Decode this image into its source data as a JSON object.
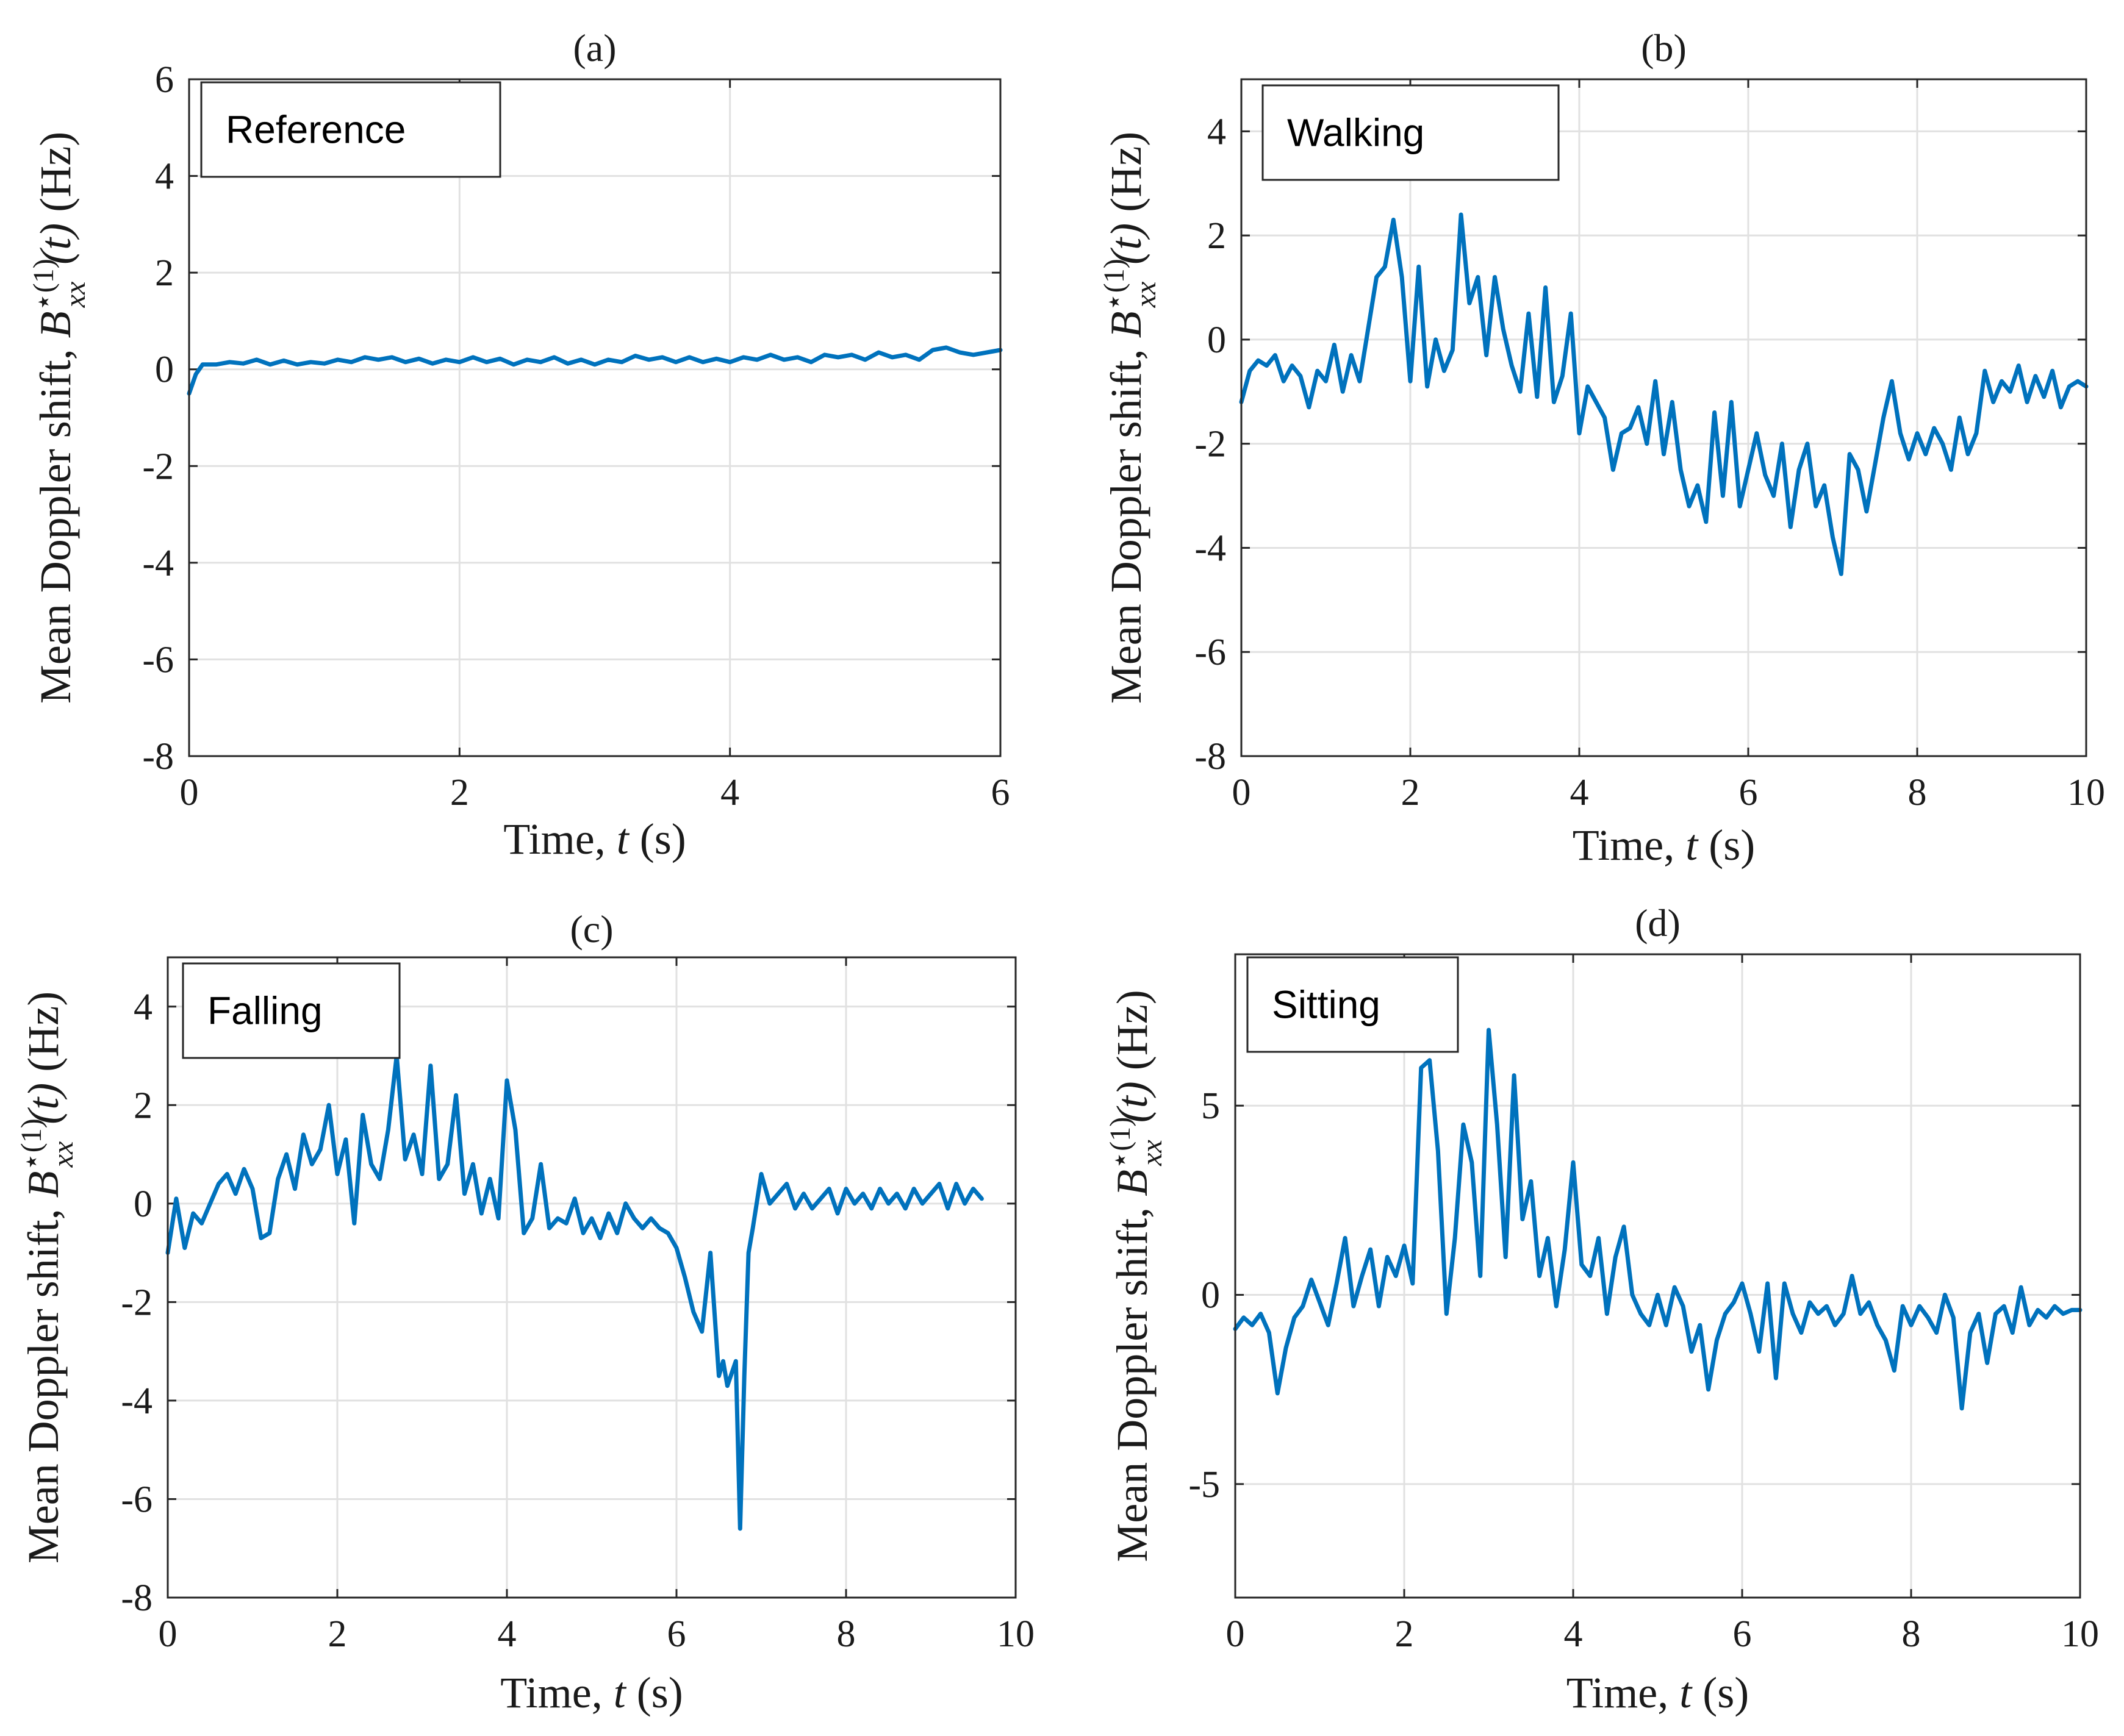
{
  "figure": {
    "x_label_prefix": "Time,",
    "x_label_var": "t",
    "x_label_unit": "(s)",
    "y_label_prefix": "Mean Doppler shift,",
    "y_label_sym": "B",
    "y_label_sup": "⋆(1)",
    "y_label_sub": "xx",
    "y_label_arg": "(t)",
    "y_label_unit": "(Hz)",
    "line_color": "#0072bd"
  },
  "chart_data": [
    {
      "type": "line",
      "title": "(a)",
      "legend": "Reference",
      "xlabel": "Time, t (s)",
      "ylabel": "Mean Doppler shift, B*(1)xx(t) (Hz)",
      "xlim": [
        0,
        6
      ],
      "ylim": [
        -8,
        6
      ],
      "xticks": [
        0,
        2,
        4,
        6
      ],
      "yticks": [
        -8,
        -6,
        -4,
        -2,
        0,
        2,
        4,
        6
      ],
      "x": [
        0,
        0.05,
        0.1,
        0.2,
        0.3,
        0.4,
        0.5,
        0.6,
        0.7,
        0.8,
        0.9,
        1.0,
        1.1,
        1.2,
        1.3,
        1.4,
        1.5,
        1.6,
        1.7,
        1.8,
        1.9,
        2.0,
        2.1,
        2.2,
        2.3,
        2.4,
        2.5,
        2.6,
        2.7,
        2.8,
        2.9,
        3.0,
        3.1,
        3.2,
        3.3,
        3.4,
        3.5,
        3.6,
        3.7,
        3.8,
        3.9,
        4.0,
        4.1,
        4.2,
        4.3,
        4.4,
        4.5,
        4.6,
        4.7,
        4.8,
        4.9,
        5.0,
        5.1,
        5.2,
        5.3,
        5.4,
        5.5,
        5.6,
        5.7,
        5.8,
        5.9,
        6.0
      ],
      "series": [
        {
          "name": "Reference",
          "values": [
            -0.5,
            -0.1,
            0.1,
            0.1,
            0.15,
            0.12,
            0.2,
            0.1,
            0.18,
            0.1,
            0.15,
            0.12,
            0.2,
            0.15,
            0.25,
            0.2,
            0.25,
            0.15,
            0.22,
            0.12,
            0.2,
            0.15,
            0.25,
            0.15,
            0.22,
            0.1,
            0.2,
            0.15,
            0.25,
            0.12,
            0.2,
            0.1,
            0.2,
            0.15,
            0.28,
            0.2,
            0.25,
            0.15,
            0.25,
            0.15,
            0.22,
            0.15,
            0.25,
            0.2,
            0.3,
            0.2,
            0.25,
            0.15,
            0.3,
            0.25,
            0.3,
            0.2,
            0.35,
            0.25,
            0.3,
            0.2,
            0.4,
            0.45,
            0.35,
            0.3,
            0.35,
            0.4
          ]
        }
      ]
    },
    {
      "type": "line",
      "title": "(b)",
      "legend": "Walking",
      "xlabel": "Time, t (s)",
      "ylabel": "Mean Doppler shift, B*(1)xx(t) (Hz)",
      "xlim": [
        0,
        10
      ],
      "ylim": [
        -8,
        5
      ],
      "xticks": [
        0,
        2,
        4,
        6,
        8,
        10
      ],
      "yticks": [
        -8,
        -6,
        -4,
        -2,
        0,
        2,
        4
      ],
      "x": [
        0,
        0.1,
        0.2,
        0.3,
        0.4,
        0.5,
        0.6,
        0.7,
        0.8,
        0.9,
        1.0,
        1.1,
        1.2,
        1.3,
        1.4,
        1.5,
        1.6,
        1.7,
        1.8,
        1.9,
        2.0,
        2.1,
        2.2,
        2.3,
        2.4,
        2.5,
        2.6,
        2.7,
        2.8,
        2.9,
        3.0,
        3.1,
        3.2,
        3.3,
        3.4,
        3.5,
        3.6,
        3.7,
        3.8,
        3.9,
        4.0,
        4.1,
        4.2,
        4.3,
        4.4,
        4.5,
        4.6,
        4.7,
        4.8,
        4.9,
        5.0,
        5.1,
        5.2,
        5.3,
        5.4,
        5.5,
        5.6,
        5.7,
        5.8,
        5.9,
        6.0,
        6.1,
        6.2,
        6.3,
        6.4,
        6.5,
        6.6,
        6.7,
        6.8,
        6.9,
        7.0,
        7.1,
        7.2,
        7.3,
        7.4,
        7.5,
        7.6,
        7.7,
        7.8,
        7.9,
        8.0,
        8.1,
        8.2,
        8.3,
        8.4,
        8.5,
        8.6,
        8.7,
        8.8,
        8.9,
        9.0,
        9.1,
        9.2,
        9.3,
        9.4,
        9.5,
        9.6,
        9.7,
        9.8,
        9.9,
        10.0
      ],
      "series": [
        {
          "name": "Walking",
          "values": [
            -1.2,
            -0.6,
            -0.4,
            -0.5,
            -0.3,
            -0.8,
            -0.5,
            -0.7,
            -1.3,
            -0.6,
            -0.8,
            -0.1,
            -1.0,
            -0.3,
            -0.8,
            0.2,
            1.2,
            1.4,
            2.3,
            1.2,
            -0.8,
            1.4,
            -0.9,
            0.0,
            -0.6,
            -0.2,
            2.4,
            0.7,
            1.2,
            -0.3,
            1.2,
            0.2,
            -0.5,
            -1.0,
            0.5,
            -1.1,
            1.0,
            -1.2,
            -0.7,
            0.5,
            -1.8,
            -0.9,
            -1.2,
            -1.5,
            -2.5,
            -1.8,
            -1.7,
            -1.3,
            -2.0,
            -0.8,
            -2.2,
            -1.2,
            -2.5,
            -3.2,
            -2.8,
            -3.5,
            -1.4,
            -3.0,
            -1.2,
            -3.2,
            -2.5,
            -1.8,
            -2.6,
            -3.0,
            -2.0,
            -3.6,
            -2.5,
            -2.0,
            -3.2,
            -2.8,
            -3.8,
            -4.5,
            -2.2,
            -2.5,
            -3.3,
            -2.4,
            -1.5,
            -0.8,
            -1.8,
            -2.3,
            -1.8,
            -2.2,
            -1.7,
            -2.0,
            -2.5,
            -1.5,
            -2.2,
            -1.8,
            -0.6,
            -1.2,
            -0.8,
            -1.0,
            -0.5,
            -1.2,
            -0.7,
            -1.1,
            -0.6,
            -1.3,
            -0.9,
            -0.8,
            -0.9
          ]
        }
      ]
    },
    {
      "type": "line",
      "title": "(c)",
      "legend": "Falling",
      "xlabel": "Time, t (s)",
      "ylabel": "Mean Doppler shift, B*(1)xx(t) (Hz)",
      "xlim": [
        0,
        10
      ],
      "ylim": [
        -8,
        5
      ],
      "xticks": [
        0,
        2,
        4,
        6,
        8,
        10
      ],
      "yticks": [
        -8,
        -6,
        -4,
        -2,
        0,
        2,
        4
      ],
      "x": [
        0,
        0.1,
        0.2,
        0.3,
        0.4,
        0.5,
        0.6,
        0.7,
        0.8,
        0.9,
        1.0,
        1.1,
        1.2,
        1.3,
        1.4,
        1.5,
        1.6,
        1.7,
        1.8,
        1.9,
        2.0,
        2.1,
        2.2,
        2.3,
        2.4,
        2.5,
        2.6,
        2.7,
        2.8,
        2.9,
        3.0,
        3.1,
        3.2,
        3.3,
        3.4,
        3.5,
        3.6,
        3.7,
        3.8,
        3.9,
        4.0,
        4.1,
        4.2,
        4.3,
        4.4,
        4.5,
        4.6,
        4.7,
        4.8,
        4.9,
        5.0,
        5.1,
        5.2,
        5.3,
        5.4,
        5.5,
        5.6,
        5.7,
        5.8,
        5.9,
        6.0,
        6.1,
        6.2,
        6.3,
        6.4,
        6.5,
        6.55,
        6.6,
        6.7,
        6.75,
        6.8,
        6.85,
        6.9,
        7.0,
        7.1,
        7.2,
        7.3,
        7.4,
        7.5,
        7.6,
        7.7,
        7.8,
        7.9,
        8.0,
        8.1,
        8.2,
        8.3,
        8.4,
        8.5,
        8.6,
        8.7,
        8.8,
        8.9,
        9.0,
        9.1,
        9.2,
        9.3,
        9.4,
        9.5,
        9.6
      ],
      "series": [
        {
          "name": "Falling",
          "values": [
            -1.0,
            0.1,
            -0.9,
            -0.2,
            -0.4,
            0.0,
            0.4,
            0.6,
            0.2,
            0.7,
            0.3,
            -0.7,
            -0.6,
            0.5,
            1.0,
            0.3,
            1.4,
            0.8,
            1.1,
            2.0,
            0.6,
            1.3,
            -0.4,
            1.8,
            0.8,
            0.5,
            1.5,
            3.0,
            0.9,
            1.4,
            0.6,
            2.8,
            0.5,
            0.8,
            2.2,
            0.2,
            0.8,
            -0.2,
            0.5,
            -0.3,
            2.5,
            1.5,
            -0.6,
            -0.3,
            0.8,
            -0.5,
            -0.3,
            -0.4,
            0.1,
            -0.6,
            -0.3,
            -0.7,
            -0.2,
            -0.6,
            0.0,
            -0.3,
            -0.5,
            -0.3,
            -0.5,
            -0.6,
            -0.9,
            -1.5,
            -2.2,
            -2.6,
            -1.0,
            -3.5,
            -3.2,
            -3.7,
            -3.2,
            -6.6,
            -3.5,
            -1.0,
            -0.5,
            0.6,
            0.0,
            0.2,
            0.4,
            -0.1,
            0.2,
            -0.1,
            0.1,
            0.3,
            -0.2,
            0.3,
            0.0,
            0.2,
            -0.1,
            0.3,
            0.0,
            0.2,
            -0.1,
            0.3,
            0.0,
            0.2,
            0.4,
            -0.1,
            0.4,
            0.0,
            0.3,
            0.1
          ]
        }
      ]
    },
    {
      "type": "line",
      "title": "(d)",
      "legend": "Sitting",
      "xlabel": "Time, t (s)",
      "ylabel": "Mean Doppler shift, B*(1)xx(t) (Hz)",
      "xlim": [
        0,
        10
      ],
      "ylim": [
        -8,
        9
      ],
      "xticks": [
        0,
        2,
        4,
        6,
        8,
        10
      ],
      "yticks": [
        -5,
        0,
        5
      ],
      "ytick_labels": [
        "-5",
        "0",
        "5"
      ],
      "x": [
        0,
        0.1,
        0.2,
        0.3,
        0.4,
        0.5,
        0.6,
        0.7,
        0.8,
        0.9,
        1.0,
        1.1,
        1.2,
        1.3,
        1.4,
        1.5,
        1.6,
        1.7,
        1.8,
        1.9,
        2.0,
        2.1,
        2.2,
        2.3,
        2.4,
        2.5,
        2.6,
        2.7,
        2.8,
        2.9,
        3.0,
        3.1,
        3.2,
        3.3,
        3.4,
        3.5,
        3.6,
        3.7,
        3.8,
        3.9,
        4.0,
        4.1,
        4.2,
        4.3,
        4.4,
        4.5,
        4.6,
        4.7,
        4.8,
        4.9,
        5.0,
        5.1,
        5.2,
        5.3,
        5.4,
        5.5,
        5.6,
        5.7,
        5.8,
        5.9,
        6.0,
        6.1,
        6.2,
        6.3,
        6.4,
        6.5,
        6.6,
        6.7,
        6.8,
        6.9,
        7.0,
        7.1,
        7.2,
        7.3,
        7.4,
        7.5,
        7.6,
        7.7,
        7.8,
        7.9,
        8.0,
        8.1,
        8.2,
        8.3,
        8.4,
        8.5,
        8.6,
        8.7,
        8.8,
        8.9,
        9.0,
        9.1,
        9.2,
        9.3,
        9.4,
        9.5,
        9.6,
        9.7,
        9.8,
        9.9,
        10.0
      ],
      "series": [
        {
          "name": "Sitting",
          "values": [
            -0.9,
            -0.6,
            -0.8,
            -0.5,
            -1.0,
            -2.6,
            -1.4,
            -0.6,
            -0.3,
            0.4,
            -0.2,
            -0.8,
            0.3,
            1.5,
            -0.3,
            0.5,
            1.2,
            -0.3,
            1.0,
            0.5,
            1.3,
            0.3,
            6.0,
            6.2,
            3.8,
            -0.5,
            1.5,
            4.5,
            3.5,
            0.5,
            7.0,
            4.5,
            1.0,
            5.8,
            2.0,
            3.0,
            0.5,
            1.5,
            -0.3,
            1.2,
            3.5,
            0.8,
            0.5,
            1.5,
            -0.5,
            1.0,
            1.8,
            0.0,
            -0.5,
            -0.8,
            0.0,
            -0.8,
            0.2,
            -0.3,
            -1.5,
            -0.8,
            -2.5,
            -1.2,
            -0.5,
            -0.2,
            0.3,
            -0.5,
            -1.5,
            0.3,
            -2.2,
            0.3,
            -0.5,
            -1.0,
            -0.2,
            -0.5,
            -0.3,
            -0.8,
            -0.5,
            0.5,
            -0.5,
            -0.2,
            -0.8,
            -1.2,
            -2.0,
            -0.3,
            -0.8,
            -0.3,
            -0.6,
            -1.0,
            0.0,
            -0.6,
            -3.0,
            -1.0,
            -0.5,
            -1.8,
            -0.5,
            -0.3,
            -1.0,
            0.2,
            -0.8,
            -0.4,
            -0.6,
            -0.3,
            -0.5,
            -0.4,
            -0.4
          ]
        }
      ]
    }
  ]
}
